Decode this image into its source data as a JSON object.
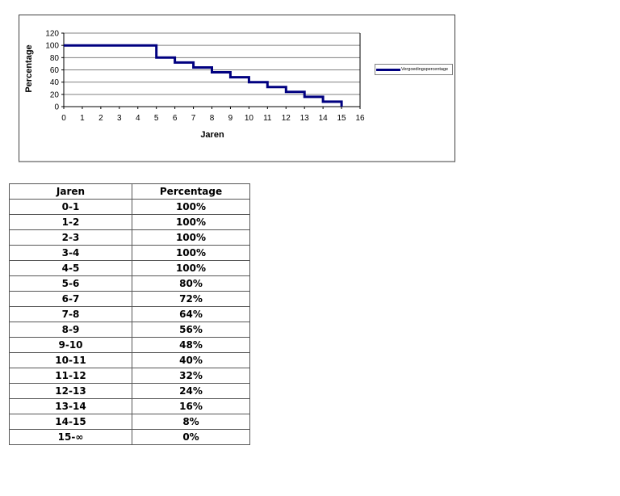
{
  "chart_data": {
    "type": "line",
    "subtype": "step",
    "title": "",
    "xlabel": "Jaren",
    "ylabel": "Percentage",
    "xlim": [
      0,
      16
    ],
    "ylim": [
      0,
      120
    ],
    "x_ticks": [
      0,
      1,
      2,
      3,
      4,
      5,
      6,
      7,
      8,
      9,
      10,
      11,
      12,
      13,
      14,
      15,
      16
    ],
    "y_ticks": [
      0,
      20,
      40,
      60,
      80,
      100,
      120
    ],
    "grid": "horizontal",
    "legend_position": "right",
    "gridline_color": "#808080",
    "axis_color": "#000000",
    "series": [
      {
        "name": "Vergoedingspercentage",
        "color": "#000080",
        "step_points": [
          [
            0,
            100
          ],
          [
            5,
            100
          ],
          [
            5,
            80
          ],
          [
            6,
            80
          ],
          [
            6,
            72
          ],
          [
            7,
            72
          ],
          [
            7,
            64
          ],
          [
            8,
            64
          ],
          [
            8,
            56
          ],
          [
            9,
            56
          ],
          [
            9,
            48
          ],
          [
            10,
            48
          ],
          [
            10,
            40
          ],
          [
            11,
            40
          ],
          [
            11,
            32
          ],
          [
            12,
            32
          ],
          [
            12,
            24
          ],
          [
            13,
            24
          ],
          [
            13,
            16
          ],
          [
            14,
            16
          ],
          [
            14,
            8
          ],
          [
            15,
            8
          ],
          [
            15,
            0
          ]
        ]
      }
    ]
  },
  "table": {
    "headers": [
      "Jaren",
      "Percentage"
    ],
    "rows": [
      [
        "0-1",
        "100%"
      ],
      [
        "1-2",
        "100%"
      ],
      [
        "2-3",
        "100%"
      ],
      [
        "3-4",
        "100%"
      ],
      [
        "4-5",
        "100%"
      ],
      [
        "5-6",
        "80%"
      ],
      [
        "6-7",
        "72%"
      ],
      [
        "7-8",
        "64%"
      ],
      [
        "8-9",
        "56%"
      ],
      [
        "9-10",
        "48%"
      ],
      [
        "10-11",
        "40%"
      ],
      [
        "11-12",
        "32%"
      ],
      [
        "12-13",
        "24%"
      ],
      [
        "13-14",
        "16%"
      ],
      [
        "14-15",
        "8%"
      ],
      [
        "15-∞",
        "0%"
      ]
    ]
  }
}
